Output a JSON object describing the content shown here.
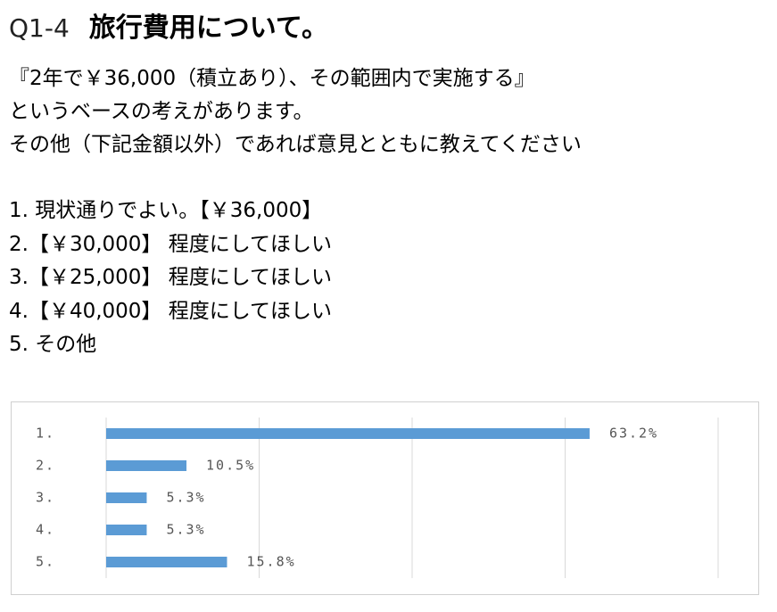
{
  "header": {
    "number": "Q1-4",
    "title": "旅行費用について。"
  },
  "description": [
    "『2年で￥36,000（積立あり）、その範囲内で実施する』",
    "というベースの考えがあります。",
    "その他（下記金額以外）であれば意見とともに教えてください"
  ],
  "options": [
    "1. 現状通りでよい。【￥36,000】",
    "2.【￥30,000】 程度にしてほしい",
    "3.【￥25,000】 程度にしてほしい",
    "4.【￥40,000】 程度にしてほしい",
    "5. その他"
  ],
  "chart_data": {
    "type": "bar",
    "orientation": "horizontal",
    "categories": [
      "1.",
      "2.",
      "3.",
      "4.",
      "5."
    ],
    "values": [
      63.2,
      10.5,
      5.3,
      5.3,
      15.8
    ],
    "value_labels": [
      "63.2%",
      "10.5%",
      "5.3%",
      "5.3%",
      "15.8%"
    ],
    "color": "#5b9bd5",
    "xlim": [
      0,
      80
    ],
    "xticks": [
      0,
      20,
      40,
      60,
      80
    ],
    "grid": true
  }
}
